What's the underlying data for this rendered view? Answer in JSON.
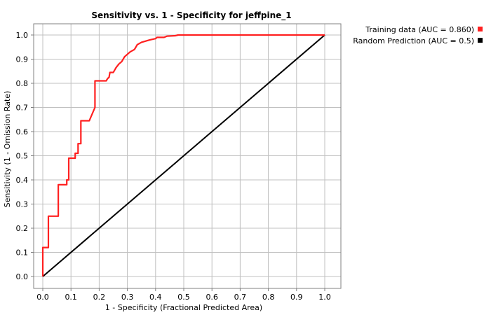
{
  "chart_data": {
    "type": "line",
    "title": "Sensitivity vs. 1 - Specificity for jeffpine_1",
    "xlabel": "1 - Specificity  (Fractional Predicted Area)",
    "ylabel": "Sensitivity  (1 - Omission Rate)",
    "xlim": [
      0,
      1.0
    ],
    "ylim": [
      0,
      1.0
    ],
    "grid": true,
    "legend_position": "top-right",
    "x_ticks": [
      "0.0",
      "0.1",
      "0.2",
      "0.3",
      "0.4",
      "0.5",
      "0.6",
      "0.7",
      "0.8",
      "0.9",
      "1.0"
    ],
    "y_ticks": [
      "0.0",
      "0.1",
      "0.2",
      "0.3",
      "0.4",
      "0.5",
      "0.6",
      "0.7",
      "0.8",
      "0.9",
      "1.0"
    ],
    "series": [
      {
        "name": "Training data (AUC = 0.860)",
        "color": "#ff2020",
        "points": [
          [
            0.0,
            0.0
          ],
          [
            0.0,
            0.12
          ],
          [
            0.02,
            0.12
          ],
          [
            0.02,
            0.25
          ],
          [
            0.055,
            0.25
          ],
          [
            0.055,
            0.38
          ],
          [
            0.085,
            0.38
          ],
          [
            0.085,
            0.4
          ],
          [
            0.092,
            0.4
          ],
          [
            0.092,
            0.49
          ],
          [
            0.115,
            0.49
          ],
          [
            0.115,
            0.51
          ],
          [
            0.125,
            0.51
          ],
          [
            0.125,
            0.55
          ],
          [
            0.135,
            0.55
          ],
          [
            0.135,
            0.645
          ],
          [
            0.165,
            0.645
          ],
          [
            0.185,
            0.7
          ],
          [
            0.185,
            0.81
          ],
          [
            0.225,
            0.81
          ],
          [
            0.23,
            0.82
          ],
          [
            0.235,
            0.825
          ],
          [
            0.238,
            0.845
          ],
          [
            0.25,
            0.845
          ],
          [
            0.26,
            0.865
          ],
          [
            0.27,
            0.88
          ],
          [
            0.28,
            0.89
          ],
          [
            0.29,
            0.91
          ],
          [
            0.3,
            0.92
          ],
          [
            0.31,
            0.93
          ],
          [
            0.325,
            0.94
          ],
          [
            0.335,
            0.96
          ],
          [
            0.35,
            0.97
          ],
          [
            0.38,
            0.98
          ],
          [
            0.4,
            0.985
          ],
          [
            0.405,
            0.99
          ],
          [
            0.43,
            0.99
          ],
          [
            0.44,
            0.995
          ],
          [
            0.47,
            0.997
          ],
          [
            0.48,
            1.0
          ],
          [
            1.0,
            1.0
          ]
        ]
      },
      {
        "name": "Random Prediction (AUC = 0.5)",
        "color": "#000000",
        "points": [
          [
            0.0,
            0.0
          ],
          [
            1.0,
            1.0
          ]
        ]
      }
    ]
  }
}
